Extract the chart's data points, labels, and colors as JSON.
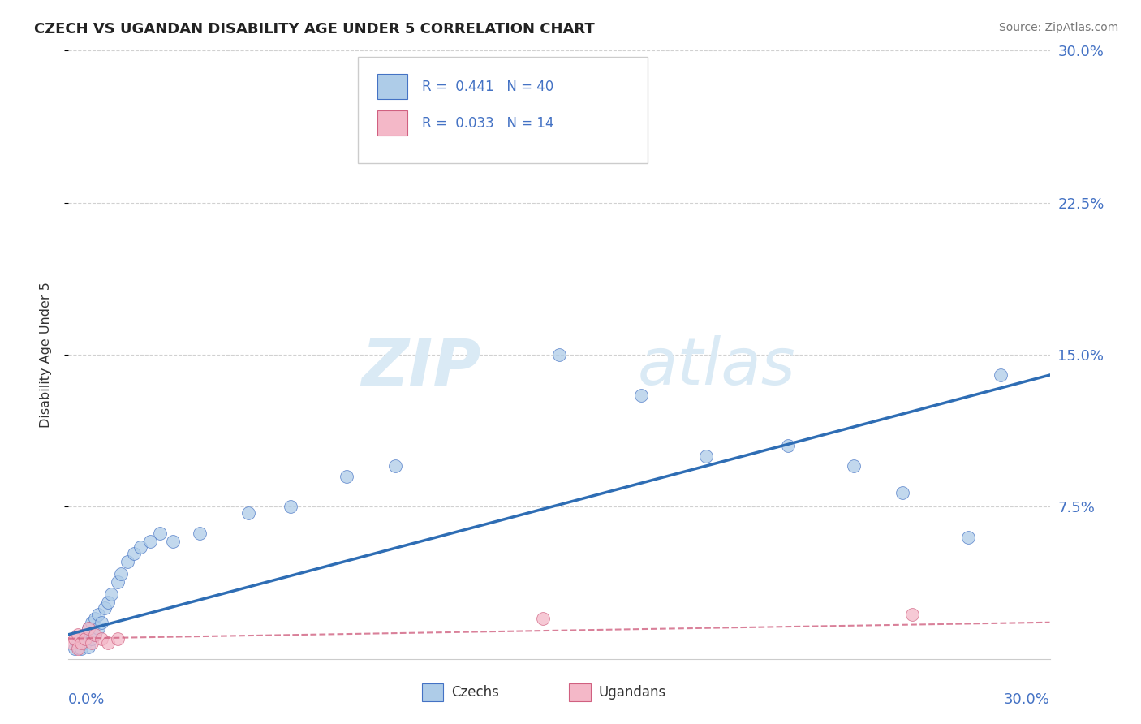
{
  "title": "CZECH VS UGANDAN DISABILITY AGE UNDER 5 CORRELATION CHART",
  "source": "Source: ZipAtlas.com",
  "ylabel": "Disability Age Under 5",
  "czech_R": 0.441,
  "czech_N": 40,
  "ugandan_R": 0.033,
  "ugandan_N": 14,
  "xlim": [
    0.0,
    0.3
  ],
  "ylim": [
    0.0,
    0.3
  ],
  "ytick_vals": [
    0.075,
    0.15,
    0.225,
    0.3
  ],
  "ytick_labels": [
    "7.5%",
    "15.0%",
    "22.5%",
    "30.0%"
  ],
  "czech_color": "#aecce8",
  "czech_edge_color": "#4472c4",
  "czech_line_color": "#2e6db4",
  "ugandan_color": "#f4b8c8",
  "ugandan_edge_color": "#d06080",
  "ugandan_line_color": "#d06080",
  "background": "#ffffff",
  "grid_color": "#cccccc",
  "tick_label_color": "#4472c4",
  "watermark_color": "#daeaf5",
  "czech_x": [
    0.002,
    0.003,
    0.003,
    0.004,
    0.004,
    0.005,
    0.005,
    0.006,
    0.006,
    0.007,
    0.007,
    0.008,
    0.008,
    0.009,
    0.009,
    0.01,
    0.011,
    0.012,
    0.013,
    0.015,
    0.016,
    0.018,
    0.02,
    0.022,
    0.025,
    0.028,
    0.032,
    0.04,
    0.055,
    0.068,
    0.085,
    0.1,
    0.15,
    0.175,
    0.195,
    0.22,
    0.24,
    0.255,
    0.275,
    0.285
  ],
  "czech_y": [
    0.005,
    0.006,
    0.008,
    0.005,
    0.01,
    0.008,
    0.012,
    0.006,
    0.015,
    0.01,
    0.018,
    0.012,
    0.02,
    0.015,
    0.022,
    0.018,
    0.025,
    0.028,
    0.032,
    0.038,
    0.042,
    0.048,
    0.052,
    0.055,
    0.058,
    0.062,
    0.058,
    0.062,
    0.072,
    0.075,
    0.09,
    0.095,
    0.15,
    0.13,
    0.1,
    0.105,
    0.095,
    0.082,
    0.06,
    0.14
  ],
  "ugandan_x": [
    0.001,
    0.002,
    0.003,
    0.003,
    0.004,
    0.005,
    0.006,
    0.007,
    0.008,
    0.01,
    0.012,
    0.015,
    0.145,
    0.258
  ],
  "ugandan_y": [
    0.008,
    0.01,
    0.005,
    0.012,
    0.008,
    0.01,
    0.015,
    0.008,
    0.012,
    0.01,
    0.008,
    0.01,
    0.02,
    0.022
  ],
  "czech_trend_x": [
    0.0,
    0.3
  ],
  "czech_trend_y": [
    0.012,
    0.14
  ],
  "ugandan_trend_x": [
    0.0,
    0.3
  ],
  "ugandan_trend_y": [
    0.01,
    0.018
  ]
}
